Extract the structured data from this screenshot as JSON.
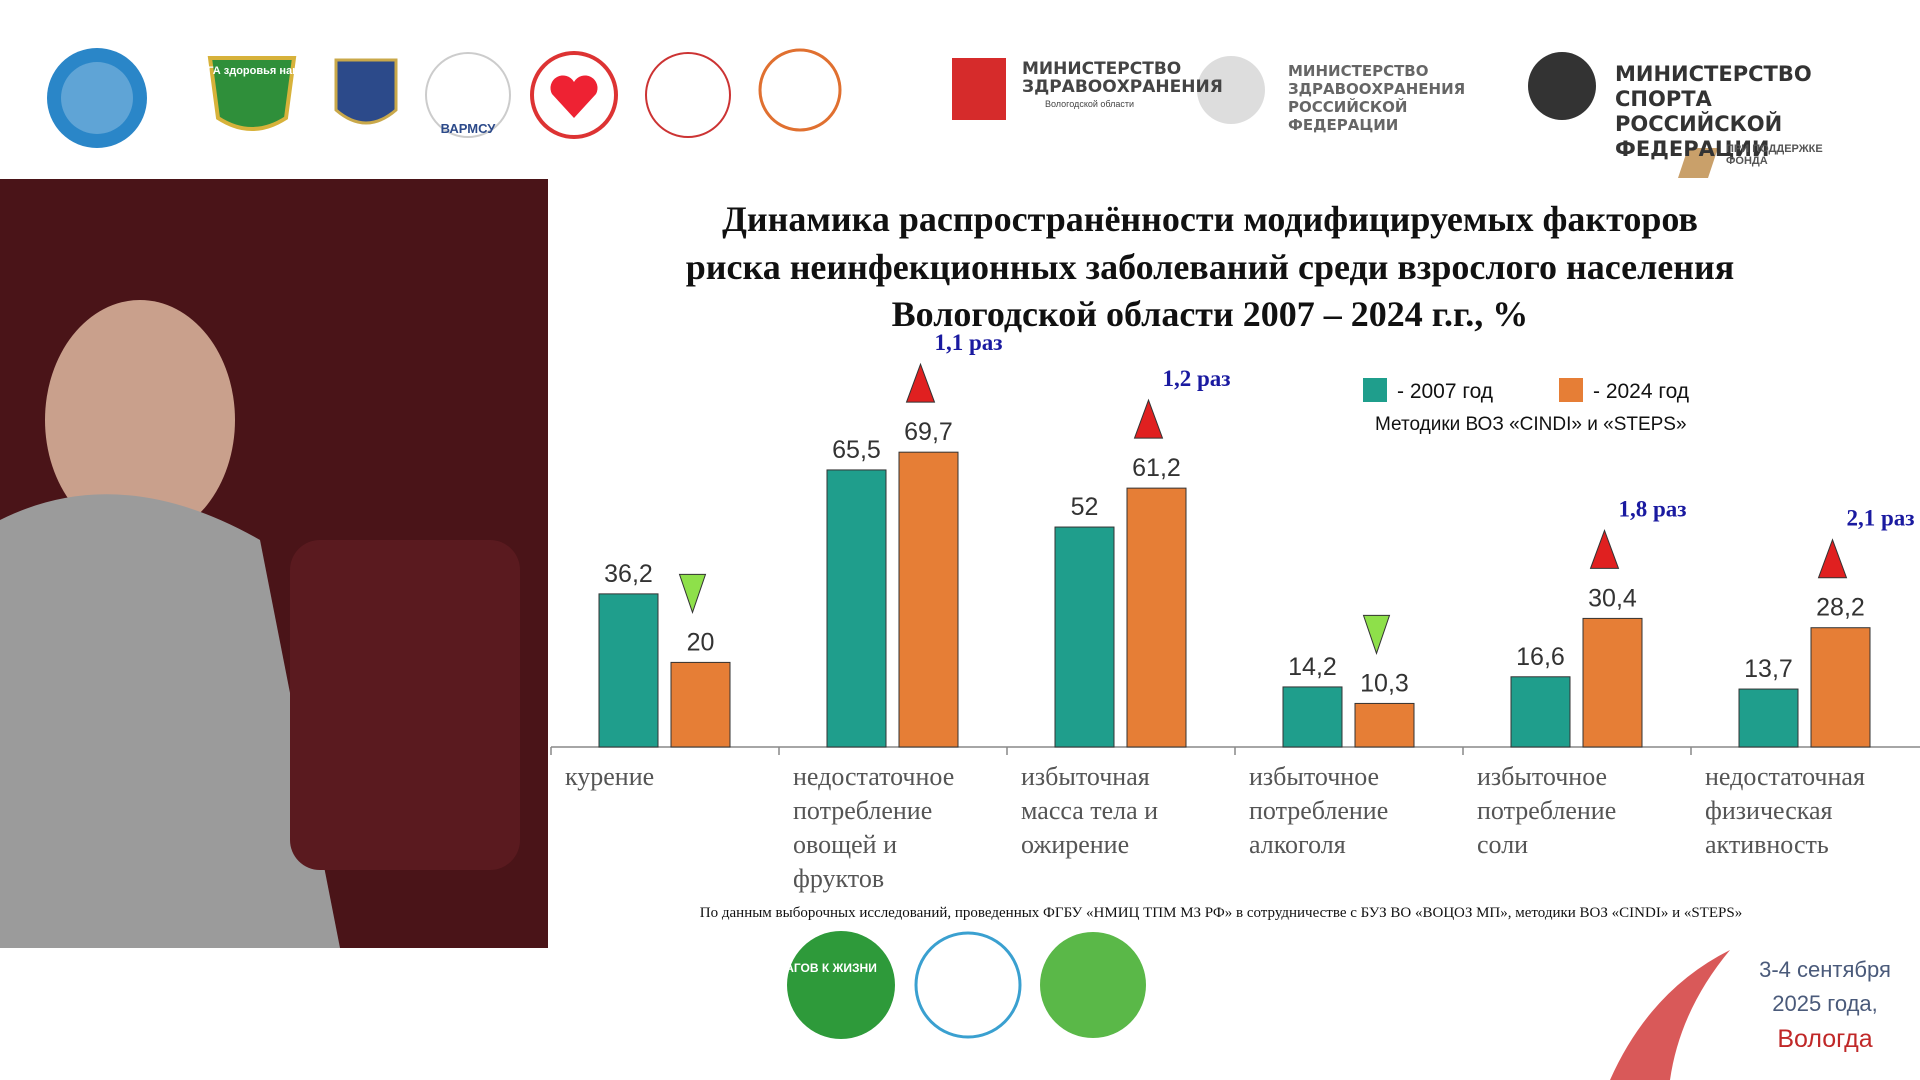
{
  "header": {
    "liga_logo": "ЛИГА здоровья нации",
    "varmsu_logo": "ВАРМСУ",
    "ministry_regional": {
      "title": "МИНИСТЕРСТВО ЗДРАВООХРАНЕНИЯ",
      "subtitle": "Вологодской области"
    },
    "ministry_health": "МИНИСТЕРСТВО ЗДРАВООХРАНЕНИЯ РОССИЙСКОЙ ФЕДЕРАЦИИ",
    "ministry_sport": "МИНИСТЕРСТВО СПОРТА РОССИЙСКОЙ ФЕДЕРАЦИИ",
    "fund": "ПРИ ПОДДЕРЖКЕ ФОНДА"
  },
  "chart_data": {
    "type": "bar",
    "title": [
      "Динамика распространённости модифицируемых факторов",
      "риска неинфекционных заболеваний среди взрослого населения",
      "Вологодской области 2007 – 2024 г.г., %"
    ],
    "categories": [
      "курение",
      "недостаточное потребление овощей и фруктов",
      "избыточная масса тела и ожирение",
      "избыточное потребление алкоголя",
      "избыточное потребление соли",
      "недостаточная физическая активность"
    ],
    "series": [
      {
        "name": "- 2007 год",
        "color": "#1f9e8c",
        "values": [
          36.2,
          65.5,
          52,
          14.2,
          16.6,
          13.7
        ],
        "value_labels": [
          "36,2",
          "65,5",
          "52",
          "14,2",
          "16,6",
          "13,7"
        ]
      },
      {
        "name": "- 2024 год",
        "color": "#e67e36",
        "values": [
          20,
          69.7,
          61.2,
          10.3,
          30.4,
          28.2
        ],
        "value_labels": [
          "20",
          "69,7",
          "61,2",
          "10,3",
          "30,4",
          "28,2"
        ]
      }
    ],
    "ratio_labels": [
      null,
      "1,1 раз",
      "1,2 раз",
      null,
      "1,8 раз",
      "2,1 раз"
    ],
    "legend_note": "Методики ВОЗ «CINDI» и «STEPS»",
    "source": "По данным выборочных исследований, проведенных ФГБУ «НМИЦ ТПМ МЗ РФ» в сотрудничестве с БУЗ ВО «ВОЦОЗ МП», методики ВОЗ «CINDI» и «STEPS»"
  },
  "footer": {
    "steps_logo": "ШАГОВ К ЖИЗНИ",
    "event_date": [
      "3-4 сентября",
      "2025 года,"
    ],
    "city": "Вологда"
  }
}
